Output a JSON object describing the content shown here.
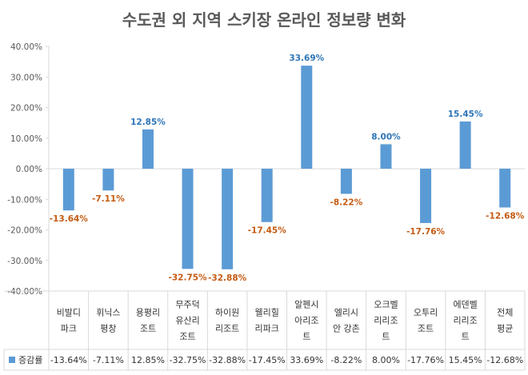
{
  "chart_data": {
    "type": "bar",
    "title": "수도권 외 지역 스키장 온라인 정보량 변화",
    "categories": [
      [
        "비발디",
        "파크"
      ],
      [
        "휘닉스",
        "평창"
      ],
      [
        "용평리",
        "조트"
      ],
      [
        "무주덕",
        "유산리",
        "조트"
      ],
      [
        "하이원",
        "리조트"
      ],
      [
        "웰리힐",
        "리파크"
      ],
      [
        "알펜시",
        "아리조",
        "트"
      ],
      [
        "엘리시",
        "안 강촌"
      ],
      [
        "오크벨",
        "리리조",
        "트"
      ],
      [
        "오투리",
        "조트"
      ],
      [
        "에덴벨",
        "리리조",
        "트"
      ],
      [
        "전체",
        "평균"
      ]
    ],
    "series": [
      {
        "name": "증감률",
        "values": [
          -13.64,
          -7.11,
          12.85,
          -32.75,
          -32.88,
          -17.45,
          33.69,
          -8.22,
          8.0,
          -17.76,
          15.45,
          -12.68
        ],
        "labels": [
          "-13.64%",
          "-7.11%",
          "12.85%",
          "-32.75%",
          "-32.88%",
          "-17.45%",
          "33.69%",
          "-8.22%",
          "8.00%",
          "-17.76%",
          "15.45%",
          "-12.68%"
        ]
      }
    ],
    "yticks": [
      "40.00%",
      "30.00%",
      "20.00%",
      "10.00%",
      "0.00%",
      "-10.00%",
      "-20.00%",
      "-30.00%",
      "-40.00%"
    ],
    "ylim": [
      -40,
      40
    ],
    "grid": false,
    "data_table": true,
    "colors": {
      "bar": "#5b9bd5",
      "positive_label": "#2e75b6",
      "negative_label": "#c55a11",
      "axis": "#d9d9d9"
    }
  }
}
